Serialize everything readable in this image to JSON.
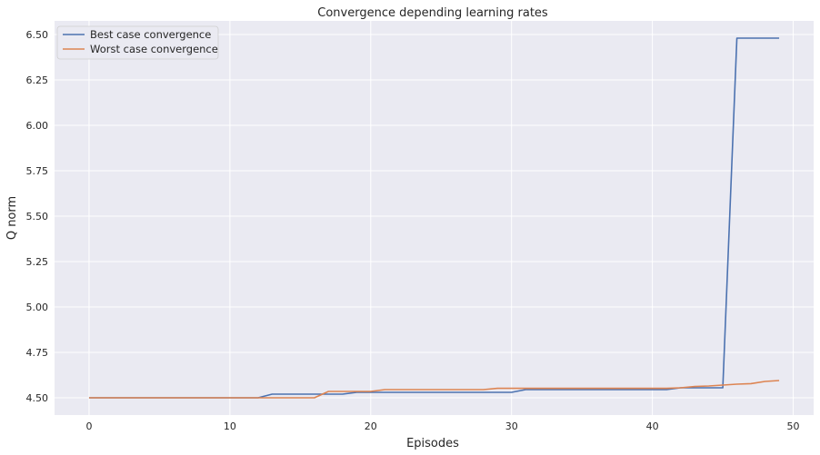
{
  "chart_data": {
    "type": "line",
    "title": "Convergence depending learning rates",
    "xlabel": "Episodes",
    "ylabel": "Q norm",
    "xlim": [
      -2.45,
      51.45
    ],
    "ylim": [
      4.405,
      6.575
    ],
    "xticks": [
      0,
      10,
      20,
      30,
      40,
      50
    ],
    "yticks": [
      4.5,
      4.75,
      5.0,
      5.25,
      5.5,
      5.75,
      6.0,
      6.25,
      6.5
    ],
    "ytick_labels": [
      "4.50",
      "4.75",
      "5.00",
      "5.25",
      "5.50",
      "5.75",
      "6.00",
      "6.25",
      "6.50"
    ],
    "grid": true,
    "legend_position": "top-left",
    "x": [
      0,
      1,
      2,
      3,
      4,
      5,
      6,
      7,
      8,
      9,
      10,
      11,
      12,
      13,
      14,
      15,
      16,
      17,
      18,
      19,
      20,
      21,
      22,
      23,
      24,
      25,
      26,
      27,
      28,
      29,
      30,
      31,
      32,
      33,
      34,
      35,
      36,
      37,
      38,
      39,
      40,
      41,
      42,
      43,
      44,
      45,
      46,
      47,
      48,
      49
    ],
    "series": [
      {
        "name": "Best case convergence",
        "color": "#4c72b0",
        "values": [
          4.5,
          4.5,
          4.5,
          4.5,
          4.5,
          4.5,
          4.5,
          4.5,
          4.5,
          4.5,
          4.5,
          4.5,
          4.5,
          4.52,
          4.52,
          4.52,
          4.52,
          4.52,
          4.52,
          4.53,
          4.53,
          4.53,
          4.53,
          4.53,
          4.53,
          4.53,
          4.53,
          4.53,
          4.53,
          4.53,
          4.53,
          4.545,
          4.545,
          4.545,
          4.545,
          4.545,
          4.545,
          4.545,
          4.545,
          4.545,
          4.545,
          4.545,
          4.555,
          4.555,
          4.555,
          4.555,
          6.48,
          6.48,
          6.48,
          6.48
        ]
      },
      {
        "name": "Worst case convergence",
        "color": "#dd8452",
        "values": [
          4.5,
          4.5,
          4.5,
          4.5,
          4.5,
          4.5,
          4.5,
          4.5,
          4.5,
          4.5,
          4.5,
          4.5,
          4.5,
          4.5,
          4.5,
          4.5,
          4.5,
          4.535,
          4.535,
          4.535,
          4.535,
          4.545,
          4.545,
          4.545,
          4.545,
          4.545,
          4.545,
          4.545,
          4.545,
          4.552,
          4.552,
          4.552,
          4.552,
          4.552,
          4.552,
          4.552,
          4.552,
          4.552,
          4.552,
          4.552,
          4.552,
          4.552,
          4.555,
          4.562,
          4.565,
          4.57,
          4.575,
          4.578,
          4.59,
          4.595
        ]
      }
    ]
  }
}
